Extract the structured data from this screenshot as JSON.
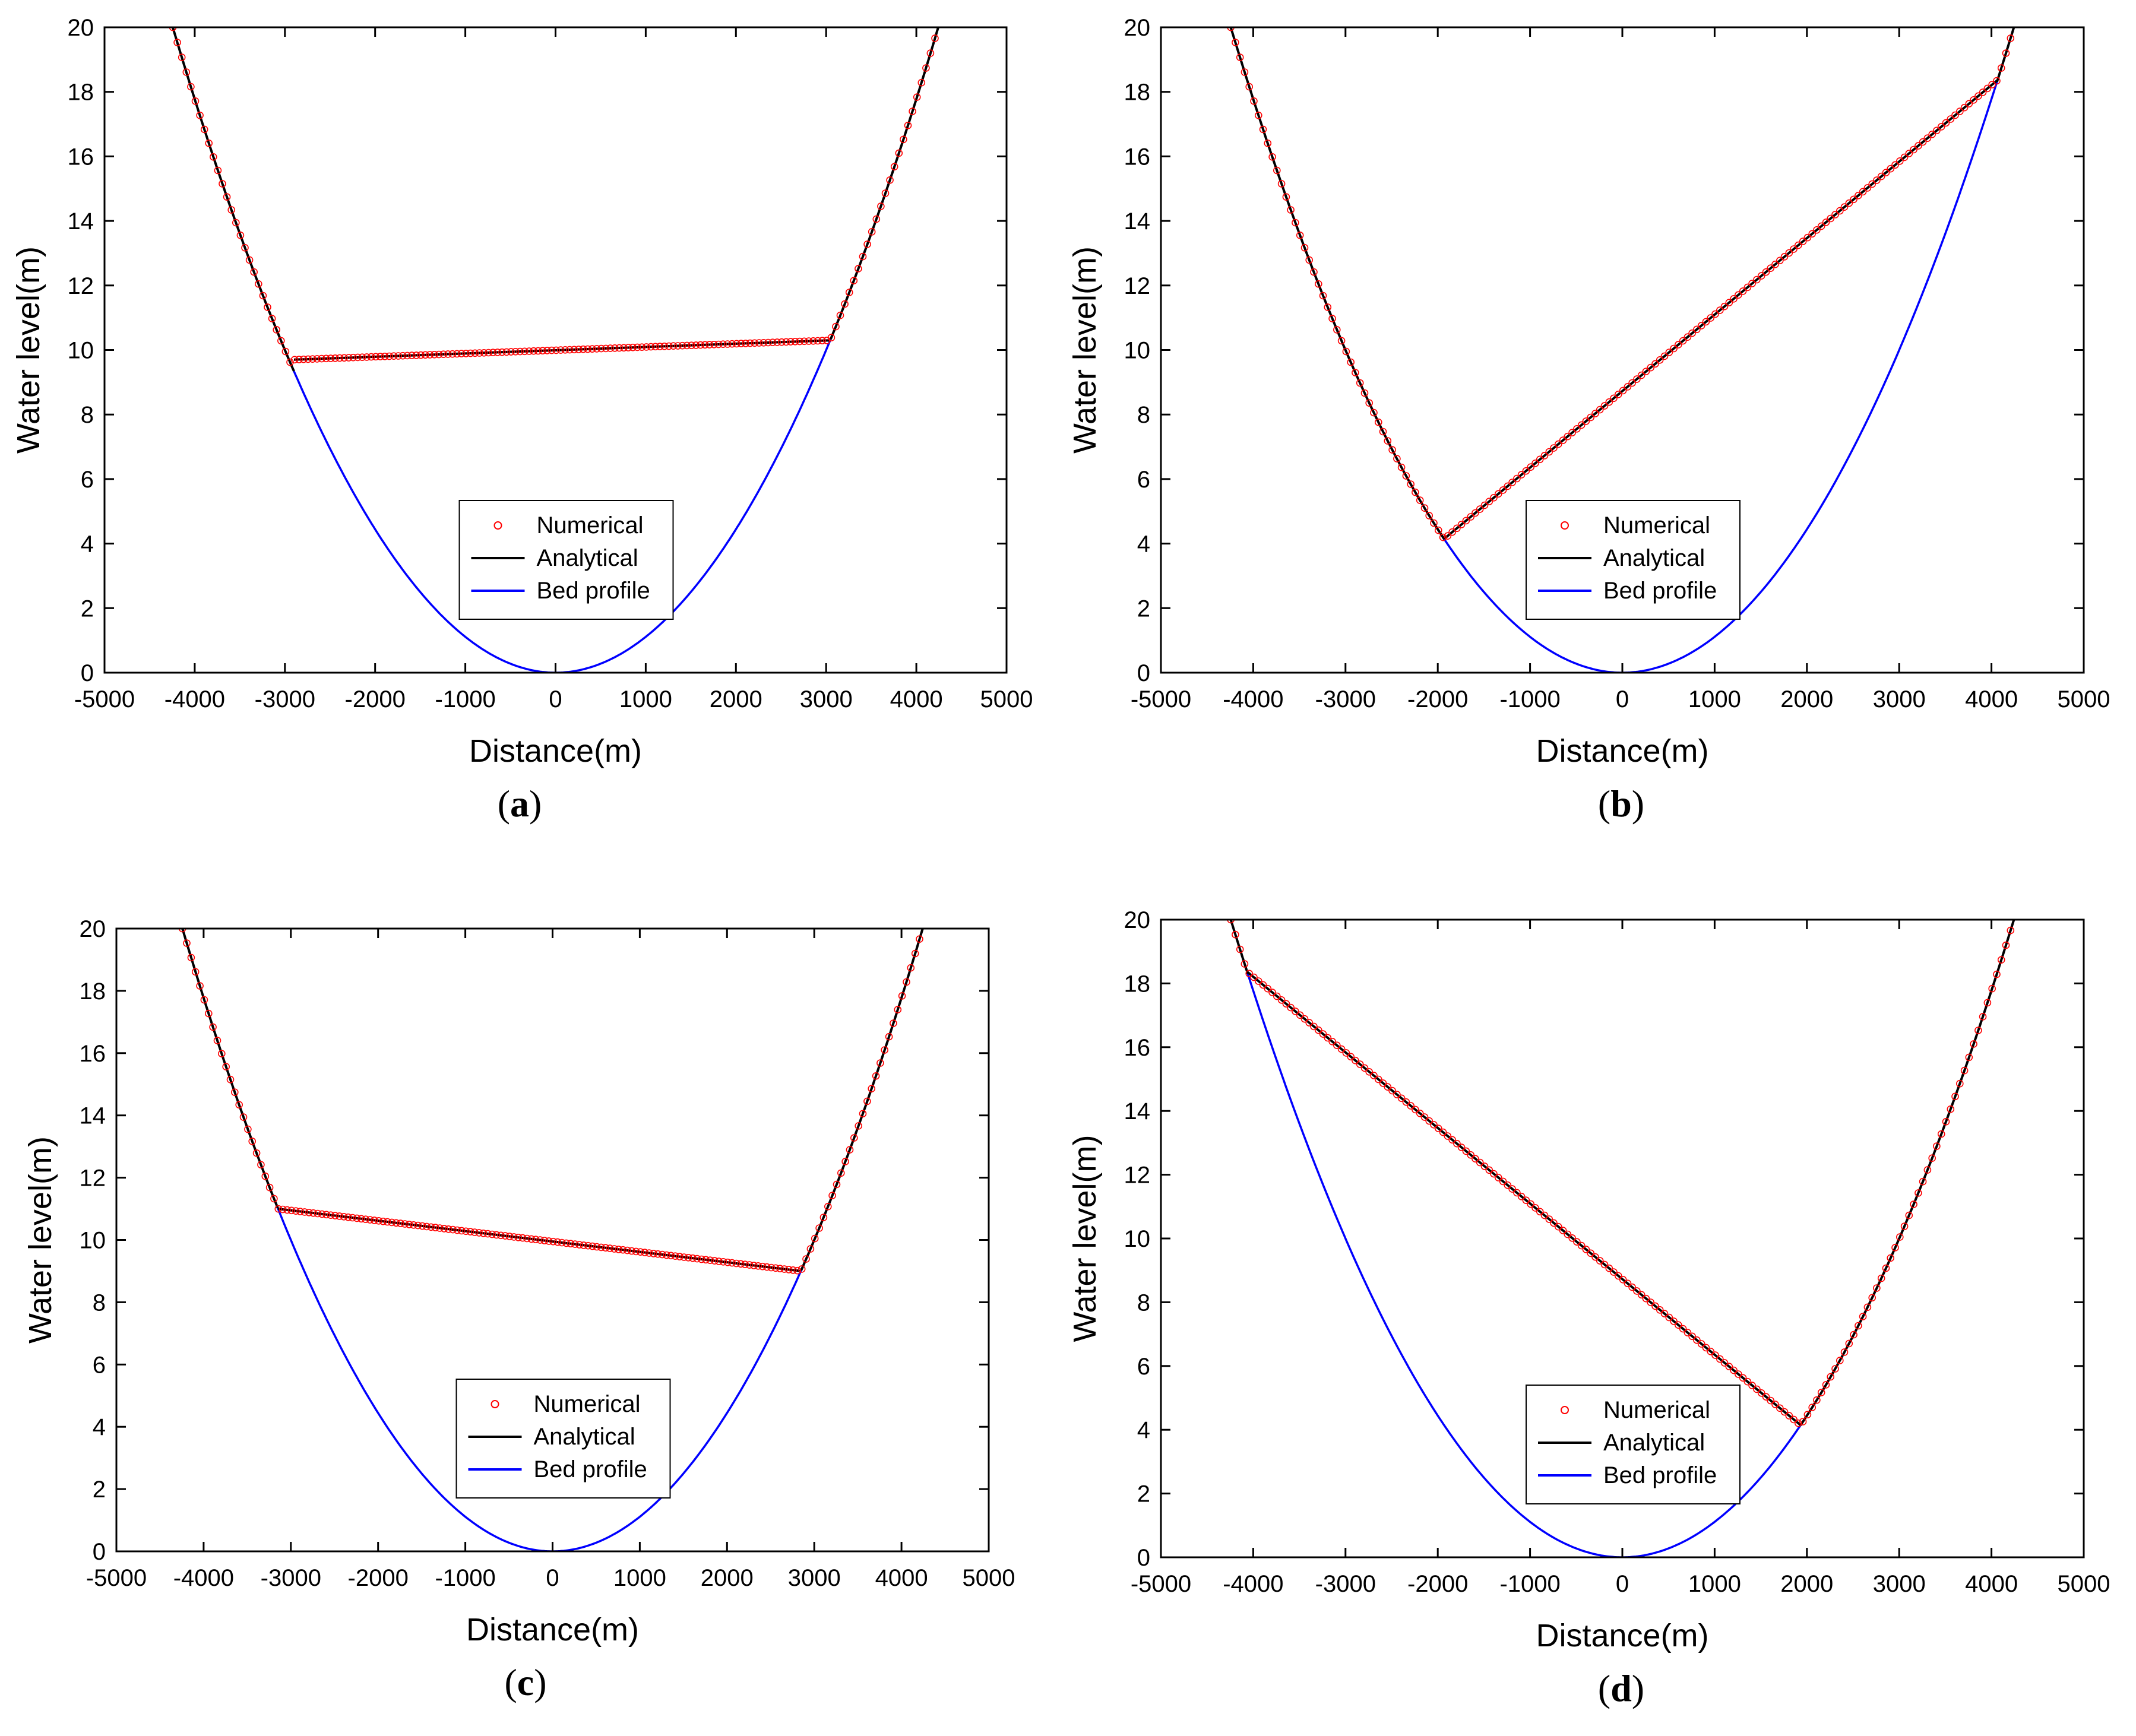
{
  "colors": {
    "numerical": "#ff0000",
    "analytical": "#000000",
    "bed": "#0000ff",
    "axis": "#000000"
  },
  "chart_data": [
    {
      "type": "line",
      "panel": "(a)",
      "caption_letter": "a",
      "xlabel": "Distance(m)",
      "ylabel": "Water level(m)",
      "xlim": [
        -5000,
        5000
      ],
      "ylim": [
        0,
        20
      ],
      "xticks": [
        -5000,
        -4000,
        -3000,
        -2000,
        -1000,
        0,
        1000,
        2000,
        3000,
        4000,
        5000
      ],
      "yticks": [
        0,
        2,
        4,
        6,
        8,
        10,
        12,
        14,
        16,
        18,
        20
      ],
      "bed_profile": {
        "equation": "z = 20 * (x/4243)^2",
        "a": 4243,
        "h0": 20
      },
      "water_segment": {
        "x_left": -2900,
        "y_left": 9.7,
        "x_right": 3050,
        "y_right": 10.3
      },
      "legend": {
        "position": "center-bottom",
        "entries": [
          "Numerical",
          "Analytical",
          "Bed profile"
        ]
      }
    },
    {
      "type": "line",
      "panel": "(b)",
      "caption_letter": "b",
      "xlabel": "Distance(m)",
      "ylabel": "Water level(m)",
      "xlim": [
        -5000,
        5000
      ],
      "ylim": [
        0,
        20
      ],
      "xticks": [
        -5000,
        -4000,
        -3000,
        -2000,
        -1000,
        0,
        1000,
        2000,
        3000,
        4000,
        5000
      ],
      "yticks": [
        0,
        2,
        4,
        6,
        8,
        10,
        12,
        14,
        16,
        18,
        20
      ],
      "bed_profile": {
        "equation": "z = 20 * (x/4243)^2",
        "a": 4243,
        "h0": 20
      },
      "water_segment": {
        "x_left": -1930,
        "y_left": 4.15,
        "x_right": 4060,
        "y_right": 18.35
      },
      "legend": {
        "position": "center-bottom",
        "entries": [
          "Numerical",
          "Analytical",
          "Bed profile"
        ]
      }
    },
    {
      "type": "line",
      "panel": "(c)",
      "caption_letter": "c",
      "xlabel": "Distance(m)",
      "ylabel": "Water level(m)",
      "xlim": [
        -5000,
        5000
      ],
      "ylim": [
        0,
        20
      ],
      "xticks": [
        -5000,
        -4000,
        -3000,
        -2000,
        -1000,
        0,
        1000,
        2000,
        3000,
        4000,
        5000
      ],
      "yticks": [
        0,
        2,
        4,
        6,
        8,
        10,
        12,
        14,
        16,
        18,
        20
      ],
      "bed_profile": {
        "equation": "z = 20 * (x/4243)^2",
        "a": 4243,
        "h0": 20
      },
      "water_segment": {
        "x_left": -3150,
        "y_left": 11.0,
        "x_right": 2850,
        "y_right": 9.0
      },
      "legend": {
        "position": "center-bottom",
        "entries": [
          "Numerical",
          "Analytical",
          "Bed profile"
        ]
      }
    },
    {
      "type": "line",
      "panel": "(d)",
      "caption_letter": "d",
      "xlabel": "Distance(m)",
      "ylabel": "Water level(m)",
      "xlim": [
        -5000,
        5000
      ],
      "ylim": [
        0,
        20
      ],
      "xticks": [
        -5000,
        -4000,
        -3000,
        -2000,
        -1000,
        0,
        1000,
        2000,
        3000,
        4000,
        5000
      ],
      "yticks": [
        0,
        2,
        4,
        6,
        8,
        10,
        12,
        14,
        16,
        18,
        20
      ],
      "bed_profile": {
        "equation": "z = 20 * (x/4243)^2",
        "a": 4243,
        "h0": 20
      },
      "water_segment": {
        "x_left": -4060,
        "y_left": 18.35,
        "x_right": 1930,
        "y_right": 4.15
      },
      "legend": {
        "position": "center-bottom",
        "entries": [
          "Numerical",
          "Analytical",
          "Bed profile"
        ]
      }
    }
  ]
}
